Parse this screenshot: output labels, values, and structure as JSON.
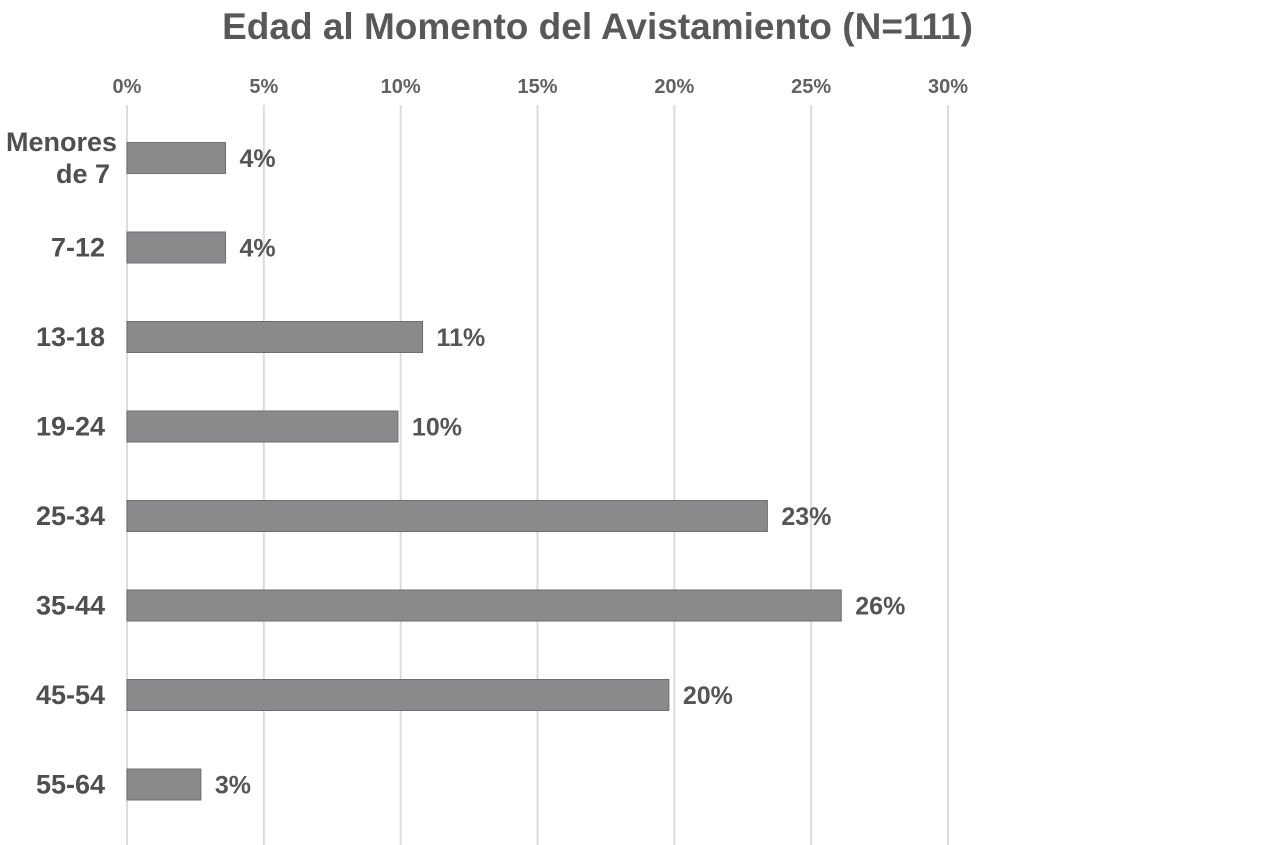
{
  "chart_data": {
    "type": "bar",
    "orientation": "horizontal",
    "title": "Edad al Momento del Avistamiento (N=111)",
    "xlabel": "",
    "ylabel": "",
    "xlim": [
      0,
      30
    ],
    "x_ticks": [
      "0%",
      "5%",
      "10%",
      "15%",
      "20%",
      "25%",
      "30%"
    ],
    "x_tick_values": [
      0,
      5,
      10,
      15,
      20,
      25,
      30
    ],
    "x_axis_position": "top",
    "grid": true,
    "legend": "none",
    "bar_color": "#8a8a8c",
    "categories": [
      [
        "Menores",
        "de 7"
      ],
      [
        "7-12"
      ],
      [
        "13-18"
      ],
      [
        "19-24"
      ],
      [
        "25-34"
      ],
      [
        "35-44"
      ],
      [
        "45-54"
      ],
      [
        "55-64"
      ]
    ],
    "values": [
      3.6,
      3.6,
      10.8,
      9.9,
      23.4,
      26.1,
      19.8,
      2.7
    ],
    "value_labels": [
      "4%",
      "4%",
      "11%",
      "10%",
      "23%",
      "26%",
      "20%",
      "3%"
    ]
  }
}
